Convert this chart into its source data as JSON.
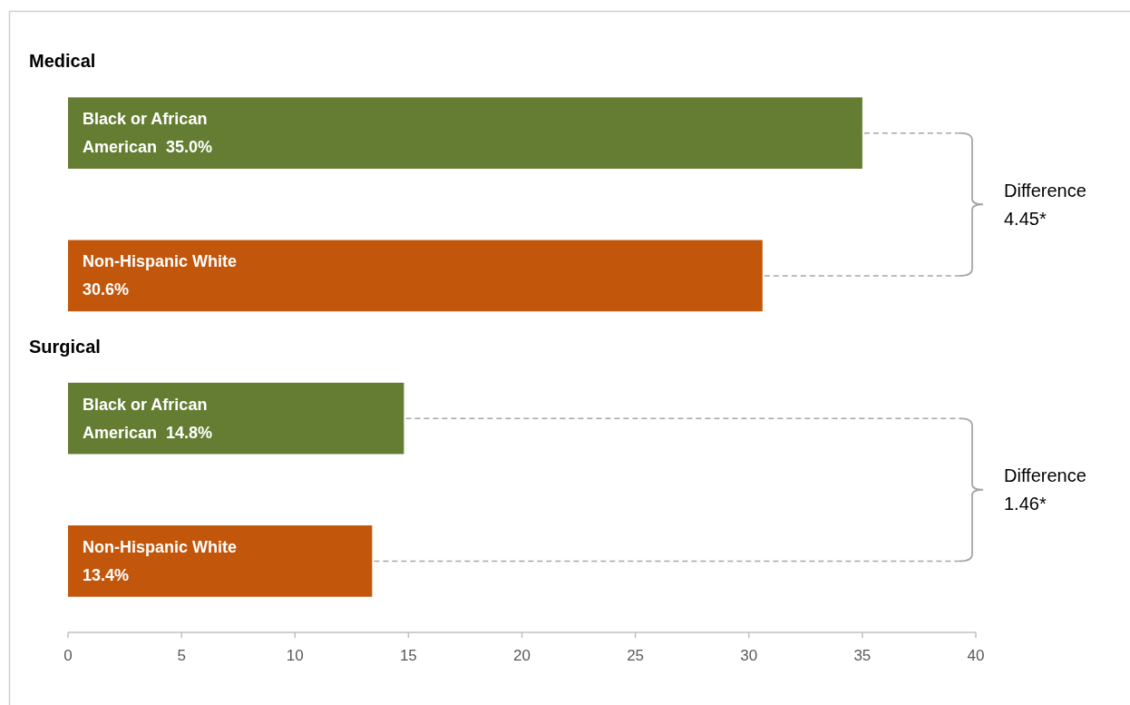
{
  "chart_data": {
    "type": "bar",
    "orientation": "horizontal",
    "categories": [
      "Medical",
      "Surgical"
    ],
    "series": [
      {
        "name": "Black or African American",
        "color": "#647d33",
        "values": [
          35.0,
          14.8
        ],
        "value_labels": [
          "35.0%",
          "14.8%"
        ]
      },
      {
        "name": "Non-Hispanic White",
        "color": "#c2560b",
        "values": [
          30.6,
          13.4
        ],
        "value_labels": [
          "30.6%",
          "13.4%"
        ]
      }
    ],
    "xlim": [
      0,
      40
    ],
    "xticks": [
      0,
      5,
      10,
      15,
      20,
      25,
      30,
      35,
      40
    ],
    "annotations": [
      "Difference 4.45*",
      "Difference 1.46*"
    ]
  }
}
